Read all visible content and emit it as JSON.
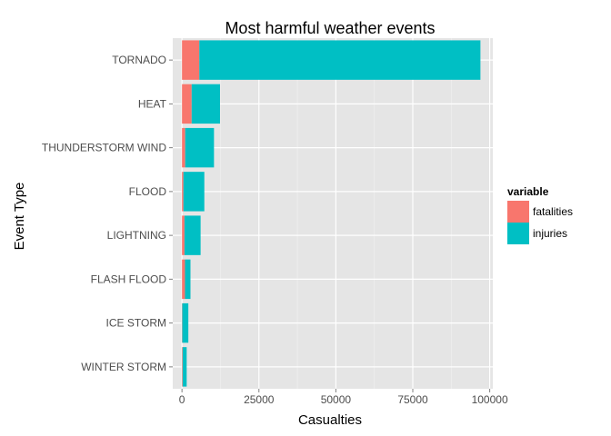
{
  "chart_data": {
    "type": "bar",
    "orientation": "horizontal",
    "stacked": true,
    "title": "Most harmful weather events",
    "xlabel": "Casualties",
    "ylabel": "Event Type",
    "categories": [
      "TORNADO",
      "HEAT",
      "THUNDERSTORM WIND",
      "FLOOD",
      "LIGHTNING",
      "FLASH FLOOD",
      "ICE STORM",
      "WINTER STORM"
    ],
    "series": [
      {
        "name": "fatalities",
        "color": "#F8766D",
        "values": [
          5633,
          3138,
          1045,
          470,
          817,
          978,
          89,
          206
        ]
      },
      {
        "name": "injuries",
        "color": "#00BFC4",
        "values": [
          91346,
          9224,
          9353,
          6789,
          5230,
          1777,
          1975,
          1321
        ]
      }
    ],
    "xlim": [
      -3000,
      101000
    ],
    "xticks": [
      0,
      25000,
      50000,
      75000,
      100000
    ],
    "xtick_labels": [
      "0",
      "25000",
      "50000",
      "75000",
      "100000"
    ],
    "grid": true,
    "legend": {
      "title": "variable",
      "position": "right"
    }
  }
}
